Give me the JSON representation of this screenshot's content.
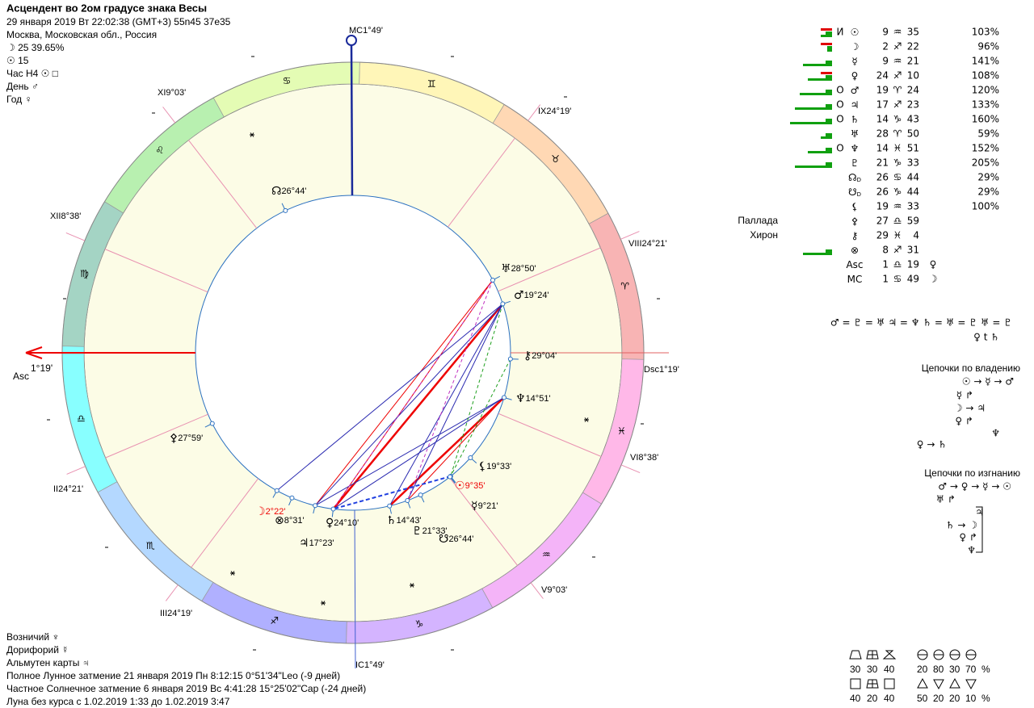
{
  "header": {
    "title": "Асцендент во 2ом градусе знака Весы",
    "lines": [
      "29 января 2019  Вт  22:02:38 (GMT+3) 55n45  37e35",
      "Москва, Московская обл., Россия",
      "☽  25 39.65%",
      "☉  15",
      "Час H4  ☉  □",
      "День  ♂",
      "Год  ♀"
    ]
  },
  "wheel": {
    "signs": [
      "♈",
      "♉",
      "♊",
      "♋",
      "♌",
      "♍",
      "♎",
      "♏",
      "♐",
      "♑",
      "♒",
      "♓"
    ],
    "cusps": [
      {
        "name": "MC",
        "value": "1°49'"
      },
      {
        "name": "XI",
        "value": "9°03'"
      },
      {
        "name": "IX",
        "value": "24°19'"
      },
      {
        "name": "XII",
        "value": "8°38'"
      },
      {
        "name": "VIII",
        "value": "24°21'"
      },
      {
        "name": "Asc",
        "value": "1°19'"
      },
      {
        "name": "Dsc",
        "value": "1°19'"
      },
      {
        "name": "II",
        "value": "24°21'"
      },
      {
        "name": "VI",
        "value": "8°38'"
      },
      {
        "name": "III",
        "value": "24°19'"
      },
      {
        "name": "V",
        "value": "9°03'"
      },
      {
        "name": "IC",
        "value": "1°49'"
      }
    ],
    "points": [
      {
        "glyph": "♅",
        "label": "28°50'"
      },
      {
        "glyph": "♂",
        "label": "19°24'"
      },
      {
        "glyph": "⚷",
        "label": "29°04'"
      },
      {
        "glyph": "♆",
        "label": "14°51'"
      },
      {
        "glyph": "⚸",
        "label": "19°33'"
      },
      {
        "glyph": "☉",
        "label": "9°35'"
      },
      {
        "glyph": "☿",
        "label": "9°21'"
      },
      {
        "glyph": "♇",
        "label": "21°33'"
      },
      {
        "glyph": "☋",
        "label": "26°44'"
      },
      {
        "glyph": "♄",
        "label": "14°43'"
      },
      {
        "glyph": "♀",
        "label": "24°10'"
      },
      {
        "glyph": "♃",
        "label": "17°23'"
      },
      {
        "glyph": "⊗",
        "label": "8°31'"
      },
      {
        "glyph": "☽",
        "label": "2°22'"
      },
      {
        "glyph": "⚴",
        "label": "27°59'"
      },
      {
        "glyph": "☊",
        "label": "26°44'"
      }
    ]
  },
  "table": {
    "rows": [
      {
        "mark": "И",
        "glyph": "☉",
        "deg": 9,
        "sign": "♒",
        "min": 35,
        "percent": "103%"
      },
      {
        "glyph": "☽",
        "deg": 2,
        "sign": "♐",
        "min": 22,
        "percent": "96%"
      },
      {
        "glyph": "☿",
        "deg": 9,
        "sign": "♒",
        "min": 21,
        "percent": "141%"
      },
      {
        "glyph": "♀",
        "deg": 24,
        "sign": "♐",
        "min": 10,
        "percent": "108%"
      },
      {
        "mark": "O",
        "glyph": "♂",
        "deg": 19,
        "sign": "♈",
        "min": 24,
        "percent": "120%"
      },
      {
        "mark": "O",
        "glyph": "♃",
        "deg": 17,
        "sign": "♐",
        "min": 23,
        "percent": "133%"
      },
      {
        "mark": "O",
        "glyph": "♄",
        "deg": 14,
        "sign": "♑",
        "min": 43,
        "percent": "160%"
      },
      {
        "glyph": "♅",
        "deg": 28,
        "sign": "♈",
        "min": 50,
        "percent": "59%"
      },
      {
        "mark": "O",
        "glyph": "♆",
        "deg": 14,
        "sign": "♓",
        "min": 51,
        "percent": "152%"
      },
      {
        "glyph": "♇",
        "deg": 21,
        "sign": "♑",
        "min": 33,
        "percent": "205%"
      },
      {
        "glyph": "☊",
        "sub": "D",
        "deg": 26,
        "sign": "♋",
        "min": 44,
        "percent": "29%"
      },
      {
        "glyph": "☋",
        "sub": "D",
        "deg": 26,
        "sign": "♑",
        "min": 44,
        "percent": "29%"
      },
      {
        "glyph": "⚸",
        "deg": 19,
        "sign": "♒",
        "min": 33,
        "percent": "100%"
      },
      {
        "name": "Паллада",
        "glyph": "⚴",
        "deg": 27,
        "sign": "♎",
        "min": 59
      },
      {
        "name": "Хирон",
        "glyph": "⚷",
        "deg": 29,
        "sign": "♓",
        "min": 4
      },
      {
        "glyph": "⊗",
        "deg": 8,
        "sign": "♐",
        "min": 31
      },
      {
        "glyph": "Asc",
        "deg": 1,
        "sign": "♎",
        "min": 19,
        "ruler": "♀"
      },
      {
        "glyph": "MC",
        "deg": 1,
        "sign": "♋",
        "min": 49,
        "ruler": "☽"
      }
    ]
  },
  "equalities": [
    "♂ = ♇ = ♅  ♃ = ♆  ♄ = ♅ = ♇  ♅ = ♇",
    "♀ t ♄"
  ],
  "chains_rulership": {
    "title": "Цепочки по владению",
    "lines": [
      "☉ → ☿ → ♂",
      "☿ ↱",
      "☽ → ♃",
      "♀ ↱",
      "♆",
      "♀ → ♄"
    ]
  },
  "chains_exile": {
    "title": "Цепочки по изгнанию",
    "lines": [
      "♂ → ♀ → ☿ → ☉",
      "♅ ↱",
      "♃",
      "♄ → ☽",
      "♀ ↱",
      "♆"
    ]
  },
  "balance": [
    {
      "values": [
        30,
        30,
        40
      ]
    },
    {
      "values": [
        20,
        80,
        30,
        70
      ],
      "unit": "%"
    },
    {
      "values": [
        40,
        20,
        40
      ]
    },
    {
      "values": [
        50,
        20,
        20,
        10
      ],
      "unit": "%"
    }
  ],
  "footer": [
    "Возничий  ♆",
    "Дорифорий  ☿",
    "Альмутен карты  ♃",
    "Полное Лунное затмение 21 января 2019 Пн  8:12:15  0°51'34\"Leo (-9 дней)",
    "Частное Солнечное затмение 6 января 2019 Вс  4:41:28 15°25'02\"Cap (-24 дней)",
    "Луна без курса с 1.02.2019  1:33 до 1.02.2019  3:47"
  ]
}
